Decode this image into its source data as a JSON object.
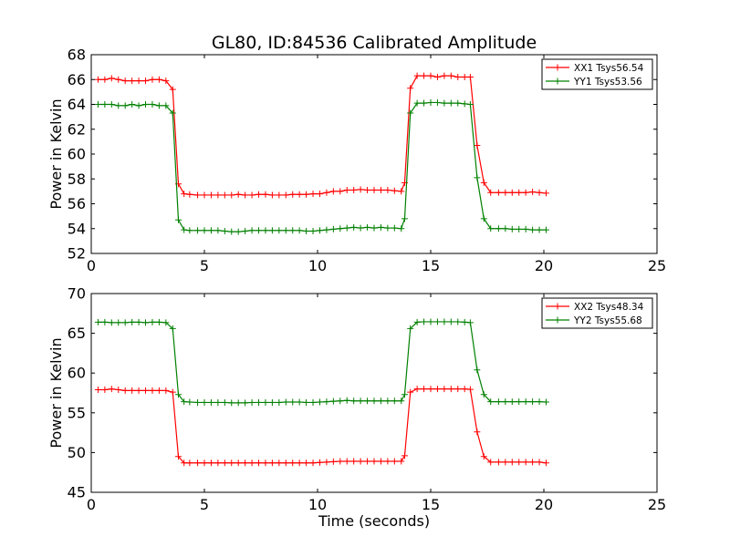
{
  "title": "GL80, ID:84536 Calibrated Amplitude",
  "chart_data": [
    {
      "type": "line",
      "title": "GL80, ID:84536 Calibrated Amplitude",
      "xlabel": "",
      "ylabel": "Power in Kelvin",
      "xlim": [
        0,
        25
      ],
      "ylim": [
        52,
        68
      ],
      "xticks": [
        0,
        5,
        10,
        15,
        20,
        25
      ],
      "yticks": [
        52,
        54,
        56,
        58,
        60,
        62,
        64,
        66,
        68
      ],
      "legend_position": "top-right",
      "grid": false,
      "x": [
        0.3,
        0.6,
        0.9,
        1.2,
        1.5,
        1.8,
        2.1,
        2.4,
        2.7,
        3.0,
        3.3,
        3.6,
        3.85,
        4.1,
        4.35,
        4.7,
        5.0,
        5.3,
        5.6,
        5.9,
        6.2,
        6.5,
        6.8,
        7.1,
        7.4,
        7.7,
        8.0,
        8.3,
        8.6,
        8.9,
        9.2,
        9.5,
        9.8,
        10.1,
        10.4,
        10.7,
        11.0,
        11.3,
        11.6,
        11.9,
        12.2,
        12.5,
        12.8,
        13.1,
        13.4,
        13.7,
        13.85,
        14.1,
        14.4,
        14.7,
        15.0,
        15.3,
        15.6,
        15.9,
        16.2,
        16.5,
        16.75,
        17.05,
        17.35,
        17.65,
        18.0,
        18.3,
        18.6,
        18.9,
        19.2,
        19.5,
        19.8,
        20.1
      ],
      "series": [
        {
          "name": "XX1 Tsys56.54",
          "color": "#ff0000",
          "values": [
            66.0,
            66.0,
            66.1,
            66.0,
            65.9,
            65.9,
            65.9,
            65.9,
            66.0,
            66.0,
            65.9,
            65.2,
            57.6,
            56.8,
            56.75,
            56.7,
            56.7,
            56.7,
            56.7,
            56.7,
            56.7,
            56.75,
            56.7,
            56.7,
            56.75,
            56.75,
            56.7,
            56.7,
            56.7,
            56.75,
            56.75,
            56.75,
            56.8,
            56.8,
            56.9,
            57.0,
            57.0,
            57.1,
            57.1,
            57.15,
            57.1,
            57.1,
            57.1,
            57.1,
            57.05,
            57.0,
            57.7,
            65.3,
            66.3,
            66.3,
            66.3,
            66.2,
            66.3,
            66.3,
            66.2,
            66.2,
            66.2,
            60.7,
            57.7,
            56.9,
            56.9,
            56.9,
            56.9,
            56.9,
            56.9,
            56.95,
            56.9,
            56.85
          ]
        },
        {
          "name": "YY1 Tsys53.56",
          "color": "#008000",
          "values": [
            64.0,
            64.0,
            64.0,
            63.9,
            63.9,
            64.0,
            63.9,
            64.0,
            64.0,
            63.9,
            63.9,
            63.3,
            54.7,
            53.9,
            53.85,
            53.85,
            53.85,
            53.85,
            53.85,
            53.8,
            53.75,
            53.75,
            53.8,
            53.85,
            53.85,
            53.85,
            53.85,
            53.85,
            53.85,
            53.85,
            53.85,
            53.8,
            53.8,
            53.85,
            53.9,
            53.95,
            54.0,
            54.05,
            54.1,
            54.05,
            54.1,
            54.05,
            54.1,
            54.05,
            54.05,
            54.0,
            54.8,
            63.3,
            64.1,
            64.1,
            64.15,
            64.15,
            64.1,
            64.1,
            64.1,
            64.05,
            64.0,
            58.1,
            54.8,
            54.0,
            54.0,
            54.0,
            53.95,
            53.95,
            53.95,
            53.9,
            53.9,
            53.9
          ]
        }
      ]
    },
    {
      "type": "line",
      "title": "",
      "xlabel": "Time (seconds)",
      "ylabel": "Power in Kelvin",
      "xlim": [
        0,
        25
      ],
      "ylim": [
        45,
        70
      ],
      "xticks": [
        0,
        5,
        10,
        15,
        20,
        25
      ],
      "yticks": [
        45,
        50,
        55,
        60,
        65,
        70
      ],
      "legend_position": "top-right",
      "grid": false,
      "x": [
        0.3,
        0.6,
        0.9,
        1.2,
        1.5,
        1.8,
        2.1,
        2.4,
        2.7,
        3.0,
        3.3,
        3.6,
        3.85,
        4.1,
        4.35,
        4.7,
        5.0,
        5.3,
        5.6,
        5.9,
        6.2,
        6.5,
        6.8,
        7.1,
        7.4,
        7.7,
        8.0,
        8.3,
        8.6,
        8.9,
        9.2,
        9.5,
        9.8,
        10.1,
        10.4,
        10.7,
        11.0,
        11.3,
        11.6,
        11.9,
        12.2,
        12.5,
        12.8,
        13.1,
        13.4,
        13.7,
        13.85,
        14.1,
        14.4,
        14.7,
        15.0,
        15.3,
        15.6,
        15.9,
        16.2,
        16.5,
        16.75,
        17.05,
        17.35,
        17.65,
        18.0,
        18.3,
        18.6,
        18.9,
        19.2,
        19.5,
        19.8,
        20.1
      ],
      "series": [
        {
          "name": "XX2 Tsys48.34",
          "color": "#ff0000",
          "values": [
            57.9,
            57.9,
            58.0,
            57.9,
            57.8,
            57.8,
            57.8,
            57.8,
            57.8,
            57.8,
            57.8,
            57.6,
            49.5,
            48.7,
            48.7,
            48.7,
            48.7,
            48.7,
            48.7,
            48.7,
            48.7,
            48.7,
            48.7,
            48.7,
            48.7,
            48.7,
            48.7,
            48.7,
            48.7,
            48.7,
            48.7,
            48.7,
            48.7,
            48.75,
            48.8,
            48.85,
            48.9,
            48.9,
            48.9,
            48.9,
            48.9,
            48.9,
            48.9,
            48.9,
            48.9,
            48.9,
            49.6,
            57.6,
            58.0,
            58.0,
            58.0,
            58.0,
            58.0,
            58.0,
            58.0,
            58.0,
            57.95,
            52.6,
            49.5,
            48.8,
            48.8,
            48.8,
            48.8,
            48.8,
            48.8,
            48.8,
            48.8,
            48.7
          ]
        },
        {
          "name": "YY2 Tsys55.68",
          "color": "#008000",
          "values": [
            66.4,
            66.4,
            66.35,
            66.35,
            66.35,
            66.4,
            66.4,
            66.35,
            66.4,
            66.4,
            66.35,
            65.6,
            57.3,
            56.4,
            56.35,
            56.3,
            56.3,
            56.3,
            56.3,
            56.3,
            56.25,
            56.25,
            56.25,
            56.3,
            56.3,
            56.3,
            56.3,
            56.3,
            56.35,
            56.35,
            56.35,
            56.3,
            56.3,
            56.35,
            56.4,
            56.45,
            56.5,
            56.55,
            56.5,
            56.5,
            56.5,
            56.5,
            56.5,
            56.5,
            56.5,
            56.5,
            57.3,
            65.6,
            66.4,
            66.45,
            66.45,
            66.45,
            66.45,
            66.45,
            66.45,
            66.4,
            66.35,
            60.4,
            57.3,
            56.4,
            56.4,
            56.4,
            56.4,
            56.4,
            56.4,
            56.4,
            56.4,
            56.35
          ]
        }
      ]
    }
  ]
}
